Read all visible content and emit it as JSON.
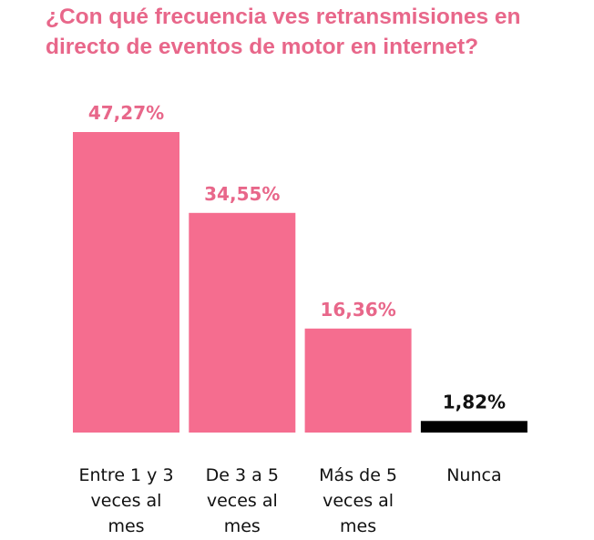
{
  "colors": {
    "accent": "#f56d8f",
    "title": "#e8678a",
    "last_bar": "#000000"
  },
  "chart_data": {
    "type": "bar",
    "title": "¿Con qué frecuencia ves retransmisiones en directo de eventos de motor en internet?",
    "categories": [
      [
        "Entre 1 y 3",
        "veces al",
        "mes"
      ],
      [
        "De 3 a 5",
        "veces al",
        "mes"
      ],
      [
        "Más de 5",
        "veces al",
        "mes"
      ],
      [
        "Nunca"
      ]
    ],
    "values": [
      47.27,
      34.55,
      16.36,
      1.82
    ],
    "value_labels": [
      "47,27%",
      "34,55%",
      "16,36%",
      "1,82%"
    ],
    "bar_colors": [
      "#f56d8f",
      "#f56d8f",
      "#f56d8f",
      "#000000"
    ],
    "label_colors": [
      "#e8678a",
      "#e8678a",
      "#e8678a",
      "#111111"
    ],
    "ylim": [
      0,
      47.27
    ],
    "grid": false,
    "legend": "none"
  }
}
